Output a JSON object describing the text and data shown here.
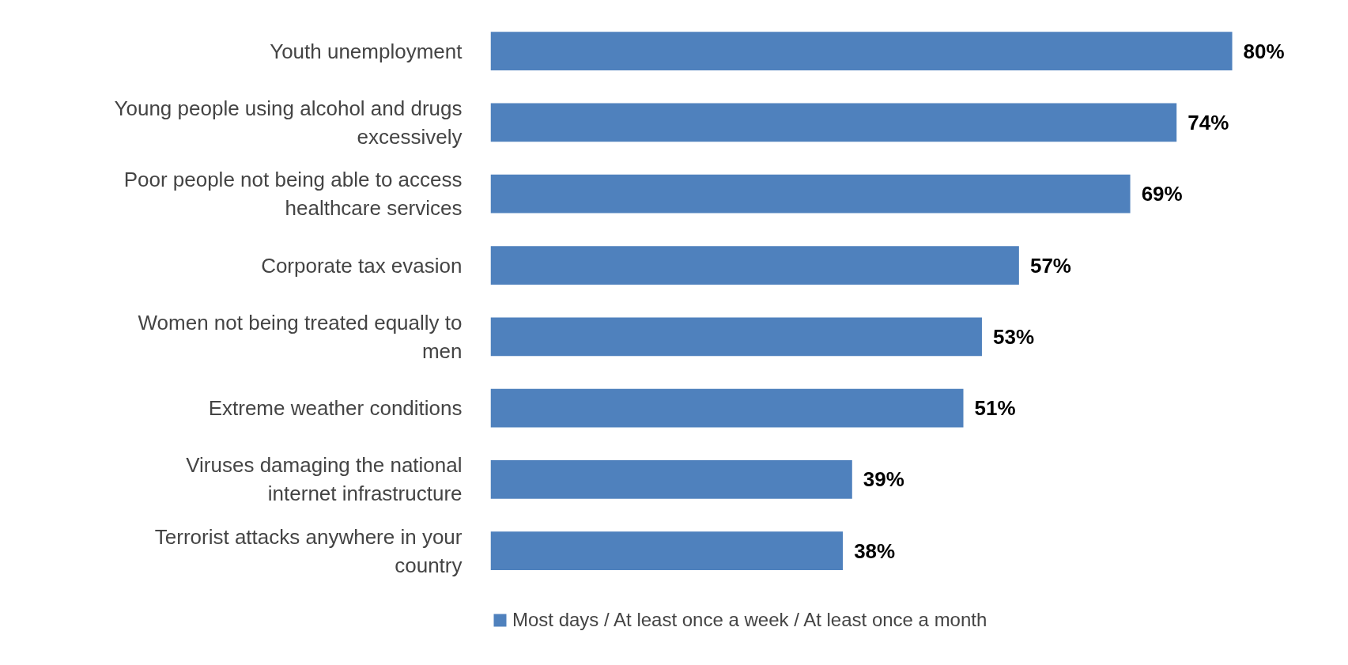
{
  "chart_data": {
    "type": "bar",
    "orientation": "horizontal",
    "categories": [
      "Youth unemployment",
      "Young people using alcohol and drugs excessively",
      "Poor people not being able to access healthcare services",
      "Corporate tax evasion",
      "Women not being treated equally to men",
      "Extreme weather conditions",
      "Viruses damaging the national internet infrastructure",
      "Terrorist attacks anywhere in your country"
    ],
    "series": [
      {
        "name": "Most days / At least once a week / At least once a month",
        "color": "#4f81bd",
        "values": [
          80,
          74,
          69,
          57,
          53,
          51,
          39,
          38
        ],
        "value_labels": [
          "80%",
          "74%",
          "69%",
          "57%",
          "53%",
          "51%",
          "39%",
          "38%"
        ]
      }
    ],
    "legend": "bottom",
    "grid": false
  }
}
